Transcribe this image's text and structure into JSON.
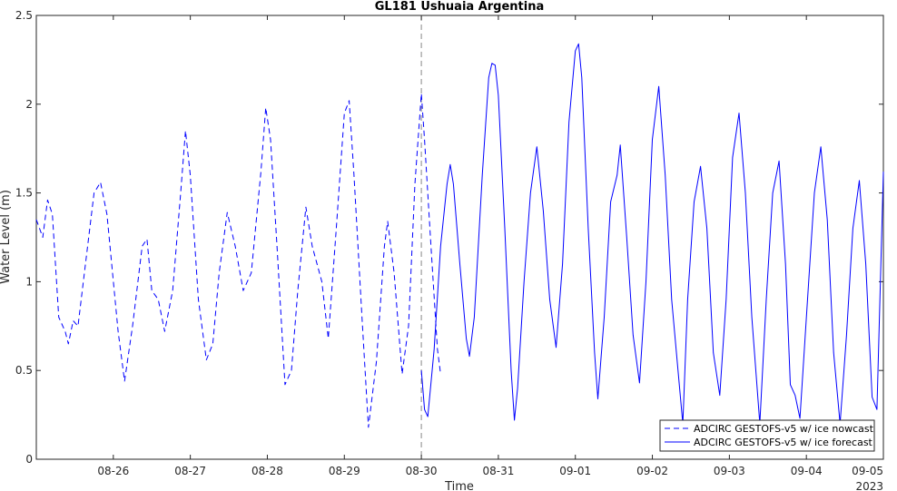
{
  "chart_data": {
    "type": "line",
    "title": "GL181 Ushuaia Argentina",
    "xlabel": "Time",
    "ylabel": "Water Level (m)",
    "year_label": "2023",
    "x_range": [
      "2023-08-25T00:00",
      "2023-09-05T00:00"
    ],
    "ylim": [
      0,
      2.5
    ],
    "y_ticks": [
      "0",
      "0.5",
      "1",
      "1.5",
      "2",
      "2.5"
    ],
    "x_ticks": [
      "08-26",
      "08-27",
      "08-28",
      "08-29",
      "08-30",
      "08-31",
      "09-01",
      "09-02",
      "09-03",
      "09-04",
      "09-05"
    ],
    "grid": false,
    "legend_position": "bottom-right",
    "nowcast_end": "2023-08-30T00:00",
    "line_color": "#0000ff",
    "series": [
      {
        "name": "ADCIRC GESTOFS-v5 w/ ice nowcast",
        "style": "dashed",
        "points": [
          [
            "2023-08-25T00:00",
            1.35
          ],
          [
            "2023-08-25T02:00",
            1.25
          ],
          [
            "2023-08-25T03:30",
            1.46
          ],
          [
            "2023-08-25T05:00",
            1.38
          ],
          [
            "2023-08-25T07:00",
            0.8
          ],
          [
            "2023-08-25T09:00",
            0.72
          ],
          [
            "2023-08-25T10:00",
            0.65
          ],
          [
            "2023-08-25T11:30",
            0.78
          ],
          [
            "2023-08-25T13:00",
            0.75
          ],
          [
            "2023-08-25T16:00",
            1.2
          ],
          [
            "2023-08-25T18:00",
            1.5
          ],
          [
            "2023-08-25T20:00",
            1.56
          ],
          [
            "2023-08-25T22:00",
            1.38
          ],
          [
            "2023-08-26T01:30",
            0.72
          ],
          [
            "2023-08-26T03:30",
            0.44
          ],
          [
            "2023-08-26T06:00",
            0.75
          ],
          [
            "2023-08-26T09:00",
            1.2
          ],
          [
            "2023-08-26T10:30",
            1.24
          ],
          [
            "2023-08-26T12:00",
            0.95
          ],
          [
            "2023-08-26T14:00",
            0.9
          ],
          [
            "2023-08-26T16:00",
            0.72
          ],
          [
            "2023-08-26T18:30",
            0.95
          ],
          [
            "2023-08-26T21:00",
            1.5
          ],
          [
            "2023-08-26T22:30",
            1.85
          ],
          [
            "2023-08-27T00:00",
            1.6
          ],
          [
            "2023-08-27T02:30",
            0.9
          ],
          [
            "2023-08-27T05:00",
            0.56
          ],
          [
            "2023-08-27T07:00",
            0.65
          ],
          [
            "2023-08-27T09:00",
            1.05
          ],
          [
            "2023-08-27T11:30",
            1.39
          ],
          [
            "2023-08-27T14:00",
            1.2
          ],
          [
            "2023-08-27T16:30",
            0.95
          ],
          [
            "2023-08-27T19:00",
            1.05
          ],
          [
            "2023-08-27T22:00",
            1.62
          ],
          [
            "2023-08-27T23:30",
            1.98
          ],
          [
            "2023-08-28T01:00",
            1.8
          ],
          [
            "2023-08-28T03:00",
            1.2
          ],
          [
            "2023-08-28T05:30",
            0.42
          ],
          [
            "2023-08-28T07:30",
            0.5
          ],
          [
            "2023-08-28T09:30",
            0.95
          ],
          [
            "2023-08-28T12:00",
            1.42
          ],
          [
            "2023-08-28T14:00",
            1.2
          ],
          [
            "2023-08-28T17:00",
            1.0
          ],
          [
            "2023-08-28T19:00",
            0.68
          ],
          [
            "2023-08-28T21:30",
            1.3
          ],
          [
            "2023-08-29T00:00",
            1.95
          ],
          [
            "2023-08-29T01:30",
            2.02
          ],
          [
            "2023-08-29T03:00",
            1.6
          ],
          [
            "2023-08-29T05:30",
            0.8
          ],
          [
            "2023-08-29T07:30",
            0.18
          ],
          [
            "2023-08-29T10:00",
            0.55
          ],
          [
            "2023-08-29T12:30",
            1.2
          ],
          [
            "2023-08-29T13:30",
            1.34
          ],
          [
            "2023-08-29T15:30",
            1.05
          ],
          [
            "2023-08-29T18:00",
            0.48
          ],
          [
            "2023-08-29T20:00",
            0.75
          ],
          [
            "2023-08-29T22:00",
            1.55
          ],
          [
            "2023-08-30T00:00",
            2.06
          ],
          [
            "2023-08-30T01:00",
            1.8
          ],
          [
            "2023-08-30T03:00",
            1.2
          ],
          [
            "2023-08-30T05:00",
            0.62
          ],
          [
            "2023-08-30T06:00",
            0.48
          ]
        ]
      },
      {
        "name": "ADCIRC GESTOFS-v5 w/ ice forecast",
        "style": "solid",
        "points": [
          [
            "2023-08-30T00:00",
            0.5
          ],
          [
            "2023-08-30T01:00",
            0.28
          ],
          [
            "2023-08-30T02:00",
            0.24
          ],
          [
            "2023-08-30T04:00",
            0.62
          ],
          [
            "2023-08-30T06:00",
            1.2
          ],
          [
            "2023-08-30T08:00",
            1.55
          ],
          [
            "2023-08-30T09:00",
            1.66
          ],
          [
            "2023-08-30T10:00",
            1.55
          ],
          [
            "2023-08-30T12:00",
            1.1
          ],
          [
            "2023-08-30T14:00",
            0.68
          ],
          [
            "2023-08-30T15:00",
            0.58
          ],
          [
            "2023-08-30T16:30",
            0.8
          ],
          [
            "2023-08-30T19:00",
            1.6
          ],
          [
            "2023-08-30T21:00",
            2.15
          ],
          [
            "2023-08-30T22:00",
            2.23
          ],
          [
            "2023-08-30T23:00",
            2.22
          ],
          [
            "2023-08-31T00:00",
            2.05
          ],
          [
            "2023-08-31T02:00",
            1.3
          ],
          [
            "2023-08-31T04:00",
            0.5
          ],
          [
            "2023-08-31T05:00",
            0.22
          ],
          [
            "2023-08-31T06:00",
            0.4
          ],
          [
            "2023-08-31T08:00",
            1.0
          ],
          [
            "2023-08-31T10:00",
            1.5
          ],
          [
            "2023-08-31T12:00",
            1.76
          ],
          [
            "2023-08-31T14:00",
            1.4
          ],
          [
            "2023-08-31T16:00",
            0.9
          ],
          [
            "2023-08-31T18:00",
            0.63
          ],
          [
            "2023-08-31T20:00",
            1.1
          ],
          [
            "2023-08-31T22:00",
            1.9
          ],
          [
            "2023-09-01T00:00",
            2.3
          ],
          [
            "2023-09-01T01:00",
            2.34
          ],
          [
            "2023-09-01T02:00",
            2.15
          ],
          [
            "2023-09-01T04:00",
            1.3
          ],
          [
            "2023-09-01T06:00",
            0.6
          ],
          [
            "2023-09-01T07:00",
            0.34
          ],
          [
            "2023-09-01T09:00",
            0.8
          ],
          [
            "2023-09-01T11:00",
            1.45
          ],
          [
            "2023-09-01T13:00",
            1.6
          ],
          [
            "2023-09-01T14:00",
            1.77
          ],
          [
            "2023-09-01T16:00",
            1.25
          ],
          [
            "2023-09-01T18:00",
            0.7
          ],
          [
            "2023-09-01T20:00",
            0.43
          ],
          [
            "2023-09-01T22:00",
            1.0
          ],
          [
            "2023-09-02T00:00",
            1.8
          ],
          [
            "2023-09-02T02:00",
            2.1
          ],
          [
            "2023-09-02T04:00",
            1.6
          ],
          [
            "2023-09-02T06:00",
            0.9
          ],
          [
            "2023-09-02T08:00",
            0.5
          ],
          [
            "2023-09-02T09:30",
            0.2
          ],
          [
            "2023-09-02T11:00",
            0.9
          ],
          [
            "2023-09-02T13:00",
            1.45
          ],
          [
            "2023-09-02T15:00",
            1.65
          ],
          [
            "2023-09-02T17:00",
            1.3
          ],
          [
            "2023-09-02T19:00",
            0.6
          ],
          [
            "2023-09-02T21:00",
            0.36
          ],
          [
            "2023-09-02T23:00",
            0.9
          ],
          [
            "2023-09-03T01:00",
            1.7
          ],
          [
            "2023-09-03T03:00",
            1.95
          ],
          [
            "2023-09-03T05:00",
            1.5
          ],
          [
            "2023-09-03T07:00",
            0.8
          ],
          [
            "2023-09-03T09:30",
            0.2
          ],
          [
            "2023-09-03T11:30",
            0.9
          ],
          [
            "2023-09-03T13:30",
            1.5
          ],
          [
            "2023-09-03T15:30",
            1.68
          ],
          [
            "2023-09-03T17:30",
            1.1
          ],
          [
            "2023-09-03T19:00",
            0.42
          ],
          [
            "2023-09-03T20:30",
            0.36
          ],
          [
            "2023-09-03T22:00",
            0.23
          ],
          [
            "2023-09-04T00:00",
            0.8
          ],
          [
            "2023-09-04T02:30",
            1.5
          ],
          [
            "2023-09-04T04:30",
            1.76
          ],
          [
            "2023-09-04T06:30",
            1.35
          ],
          [
            "2023-09-04T08:30",
            0.6
          ],
          [
            "2023-09-04T10:30",
            0.2
          ],
          [
            "2023-09-04T12:30",
            0.7
          ],
          [
            "2023-09-04T14:30",
            1.3
          ],
          [
            "2023-09-04T16:30",
            1.57
          ],
          [
            "2023-09-04T18:30",
            1.1
          ],
          [
            "2023-09-04T20:30",
            0.35
          ],
          [
            "2023-09-04T22:00",
            0.28
          ],
          [
            "2023-09-05T00:00",
            1.62
          ]
        ]
      }
    ]
  }
}
